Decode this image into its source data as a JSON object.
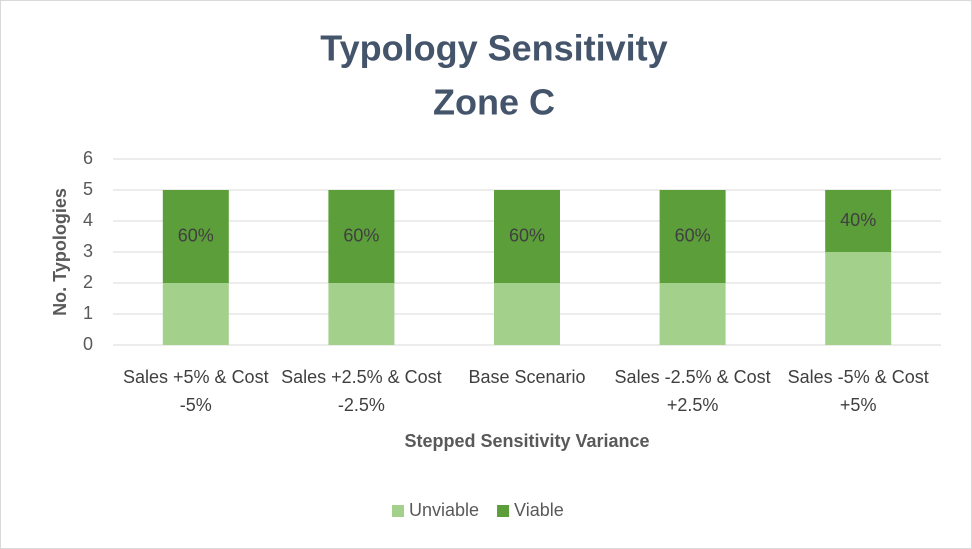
{
  "chart_data": {
    "type": "stacked_bar",
    "title": [
      "Typology Sensitivity",
      "Zone C"
    ],
    "x_label": "Stepped Sensitivity Variance",
    "y_label": "No. Typologies",
    "categories": [
      "Sales +5% & Cost -5%",
      "Sales +2.5% & Cost -2.5%",
      "Base Scenario",
      "Sales -2.5% & Cost +2.5%",
      "Sales -5% & Cost +5%"
    ],
    "series": [
      {
        "name": "Unviable",
        "color": "#a3d18b",
        "values": [
          2,
          2,
          2,
          2,
          3
        ]
      },
      {
        "name": "Viable",
        "color": "#5b9e3a",
        "values": [
          3,
          3,
          3,
          3,
          2
        ],
        "labels": [
          "60%",
          "60%",
          "60%",
          "60%",
          "40%"
        ]
      }
    ],
    "ylim": [
      0,
      6
    ],
    "yticks": [
      0,
      1,
      2,
      3,
      4,
      5,
      6
    ],
    "grid": true,
    "legend": "bottom"
  }
}
